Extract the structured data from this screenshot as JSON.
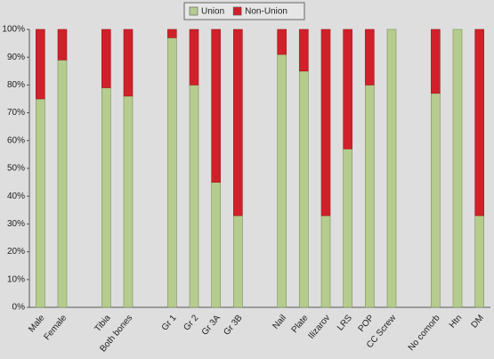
{
  "chart_data": {
    "type": "stacked_bar",
    "categories": [
      "Male",
      "Female",
      null,
      "Tibia",
      "Both bones",
      null,
      "Gr 1",
      "Gr 2",
      "Gr 3A",
      "Gr 3B",
      null,
      "Nail",
      "Plate",
      "Ilizarov",
      "LRS",
      "POP",
      "CC Screw",
      null,
      "No comorb",
      "Htn",
      "DM"
    ],
    "series": [
      {
        "name": "Union",
        "color": "#b5cc8e",
        "values": [
          75,
          89,
          null,
          79,
          76,
          null,
          97,
          80,
          45,
          33,
          null,
          91,
          85,
          33,
          57,
          80,
          100,
          null,
          77,
          100,
          33
        ]
      },
      {
        "name": "Non-Union",
        "color": "#d0212a",
        "values": [
          25,
          11,
          null,
          21,
          24,
          null,
          3,
          20,
          55,
          67,
          null,
          9,
          15,
          67,
          43,
          20,
          0,
          null,
          23,
          0,
          67
        ]
      }
    ],
    "ylim": [
      0,
      100
    ],
    "yticks": [
      {
        "value": 0,
        "label": "0%"
      },
      {
        "value": 10,
        "label": "10%"
      },
      {
        "value": 20,
        "label": "20%"
      },
      {
        "value": 30,
        "label": "30%"
      },
      {
        "value": 40,
        "label": "40%"
      },
      {
        "value": 50,
        "label": "50%"
      },
      {
        "value": 60,
        "label": "60%"
      },
      {
        "value": 70,
        "label": "70%"
      },
      {
        "value": 80,
        "label": "80%"
      },
      {
        "value": 90,
        "label": "90%"
      },
      {
        "value": 100,
        "label": "100%"
      }
    ],
    "grid": false,
    "legend": "top"
  }
}
